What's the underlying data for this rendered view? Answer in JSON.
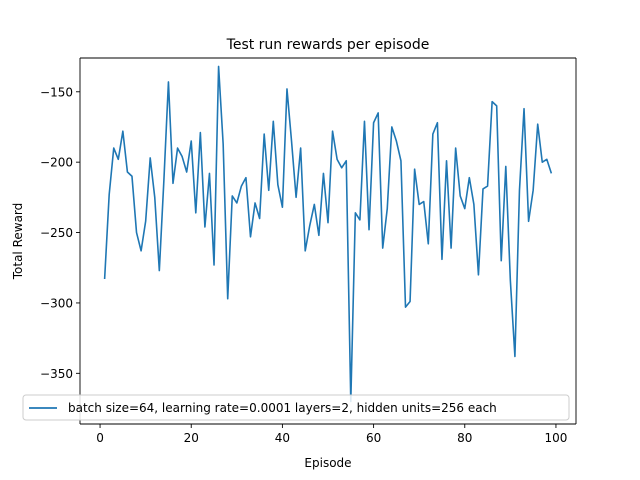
{
  "chart_data": {
    "type": "line",
    "title": "Test run rewards per episode",
    "xlabel": "Episode",
    "ylabel": "Total Reward",
    "xlim": [
      -4.4,
      104.4
    ],
    "ylim": [
      -386,
      -126
    ],
    "xticks": [
      0,
      20,
      40,
      60,
      80,
      100
    ],
    "yticks": [
      -350,
      -300,
      -250,
      -200,
      -150
    ],
    "xtick_labels": [
      "0",
      "20",
      "40",
      "60",
      "80",
      "100"
    ],
    "ytick_labels": [
      "−350",
      "−300",
      "−250",
      "−200",
      "−150"
    ],
    "grid": false,
    "legend_position": "lower-center",
    "series": [
      {
        "name": "batch size=64, learning rate=0.0001 layers=2, hidden units=256 each",
        "color": "#1f77b4",
        "x": [
          1,
          2,
          3,
          4,
          5,
          6,
          7,
          8,
          9,
          10,
          11,
          12,
          13,
          14,
          15,
          16,
          17,
          18,
          19,
          20,
          21,
          22,
          23,
          24,
          25,
          26,
          27,
          28,
          29,
          30,
          31,
          32,
          33,
          34,
          35,
          36,
          37,
          38,
          39,
          40,
          41,
          42,
          43,
          44,
          45,
          46,
          47,
          48,
          49,
          50,
          51,
          52,
          53,
          54,
          55,
          56,
          57,
          58,
          59,
          60,
          61,
          62,
          63,
          64,
          65,
          66,
          67,
          68,
          69,
          70,
          71,
          72,
          73,
          74,
          75,
          76,
          77,
          78,
          79,
          80,
          81,
          82,
          83,
          84,
          85,
          86,
          87,
          88,
          89,
          90,
          91,
          92,
          93,
          94,
          95,
          96,
          97,
          98,
          99
        ],
        "y": [
          -283,
          -223,
          -190,
          -198,
          -178,
          -207,
          -210,
          -250,
          -263,
          -242,
          -197,
          -225,
          -277,
          -213,
          -143,
          -215,
          -190,
          -196,
          -207,
          -185,
          -236,
          -179,
          -246,
          -208,
          -273,
          -132,
          -187,
          -297,
          -224,
          -229,
          -217,
          -211,
          -253,
          -229,
          -240,
          -180,
          -220,
          -171,
          -216,
          -232,
          -148,
          -185,
          -225,
          -190,
          -263,
          -245,
          -230,
          -252,
          -208,
          -243,
          -178,
          -198,
          -204,
          -199,
          -370,
          -236,
          -241,
          -171,
          -248,
          -172,
          -165,
          -261,
          -233,
          -175,
          -185,
          -199,
          -303,
          -299,
          -205,
          -230,
          -228,
          -258,
          -180,
          -172,
          -269,
          -199,
          -261,
          -190,
          -224,
          -233,
          -211,
          -230,
          -280,
          -219,
          -217,
          -157,
          -160,
          -270,
          -203,
          -284,
          -338,
          -220,
          -162,
          -242,
          -220,
          -173,
          -200,
          -198,
          -208
        ]
      }
    ]
  }
}
